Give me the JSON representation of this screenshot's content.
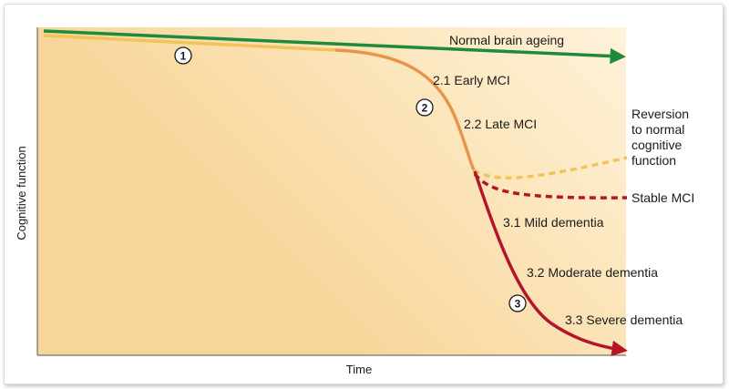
{
  "axes": {
    "x_label": "Time",
    "y_label": "Cognitive function"
  },
  "paths": {
    "normal": "Normal brain ageing",
    "mci_early": "2.1 Early MCI",
    "mci_late": "2.2 Late MCI",
    "reversion": [
      "Reversion",
      "to normal",
      "cognitive",
      "function"
    ],
    "stable": "Stable MCI",
    "dementia_mild": "3.1 Mild dementia",
    "dementia_moderate": "3.2 Moderate dementia",
    "dementia_severe": "3.3 Severe dementia"
  },
  "stages": [
    "1",
    "2",
    "3"
  ],
  "colors": {
    "normal": "#1e8a3c",
    "stage1": "#f2c35a",
    "mci": "#e8944a",
    "reversion": "#f2c35a",
    "dementia": "#b3152a",
    "background_light": "#fff8ea",
    "background_dark": "#f8d9a0"
  }
}
